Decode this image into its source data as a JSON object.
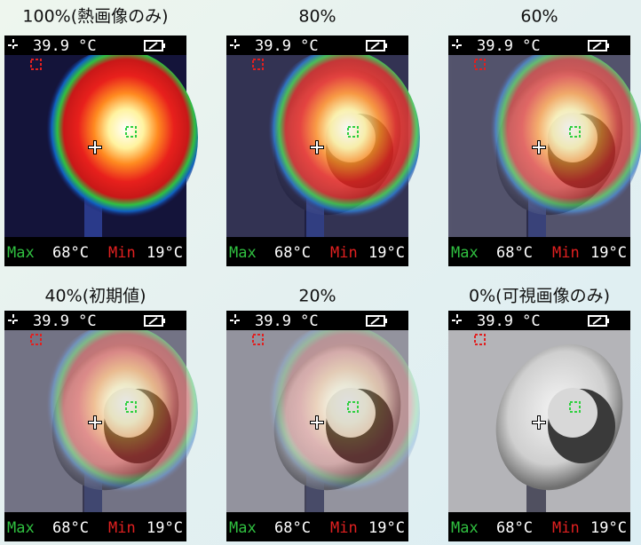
{
  "panels": [
    {
      "caption": "100%(熱画像のみ)",
      "temperature": "39.9 °C",
      "max_label": "Max",
      "max_value": "68°C",
      "min_label": "Min",
      "min_value": "19°C"
    },
    {
      "caption": "80%",
      "temperature": "39.9 °C",
      "max_label": "Max",
      "max_value": "68°C",
      "min_label": "Min",
      "min_value": "19°C"
    },
    {
      "caption": "60%",
      "temperature": "39.9 °C",
      "max_label": "Max",
      "max_value": "68°C",
      "min_label": "Min",
      "min_value": "19°C"
    },
    {
      "caption": "40%(初期値)",
      "temperature": "39.9 °C",
      "max_label": "Max",
      "max_value": "68°C",
      "min_label": "Min",
      "min_value": "19°C"
    },
    {
      "caption": "20%",
      "temperature": "39.9 °C",
      "max_label": "Max",
      "max_value": "68°C",
      "min_label": "Min",
      "min_value": "19°C"
    },
    {
      "caption": "0%(可視画像のみ)",
      "temperature": "39.9 °C",
      "max_label": "Max",
      "max_value": "68°C",
      "min_label": "Min",
      "min_value": "19°C"
    }
  ]
}
